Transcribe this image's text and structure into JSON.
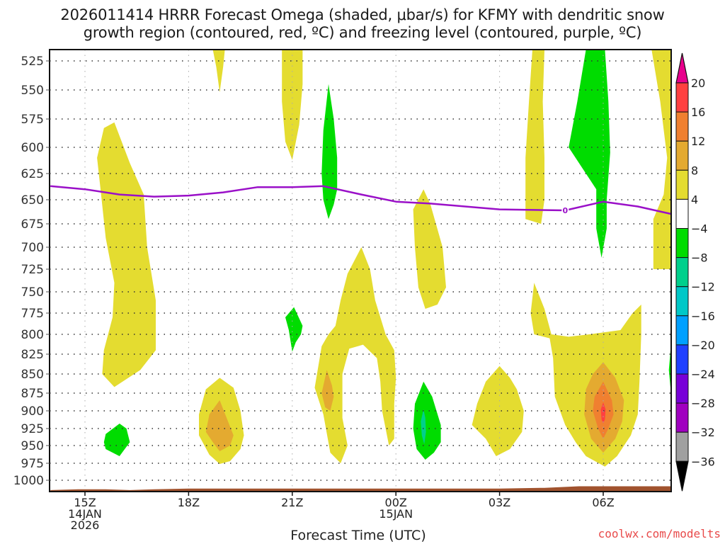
{
  "chart_data": {
    "type": "heatmap",
    "title_line1": "2026011414 HRRR Forecast Omega (shaded, μbar/s) for KFMY with dendritic snow",
    "title_line2": "growth region (contoured, red, ºC) and freezing level (contoured, purple, ºC)",
    "xlabel": "Forecast Time (UTC)",
    "ylabel": "",
    "credit": "coolwx.com/modelts",
    "x_unit": "hours since 14Z 14JAN2026",
    "xlim": [
      0,
      18
    ],
    "y_unit": "hPa",
    "ylim": [
      1015,
      512
    ],
    "y_ticks": [
      525,
      550,
      575,
      600,
      625,
      650,
      675,
      700,
      725,
      750,
      775,
      800,
      825,
      850,
      875,
      900,
      925,
      950,
      975,
      1000
    ],
    "x_ticks": [
      {
        "hour": 1,
        "label": "15Z",
        "sub1": "14JAN",
        "sub2": "2026"
      },
      {
        "hour": 4,
        "label": "18Z",
        "sub1": "",
        "sub2": ""
      },
      {
        "hour": 7,
        "label": "21Z",
        "sub1": "",
        "sub2": ""
      },
      {
        "hour": 10,
        "label": "00Z",
        "sub1": "15JAN",
        "sub2": ""
      },
      {
        "hour": 13,
        "label": "03Z",
        "sub1": "",
        "sub2": ""
      },
      {
        "hour": 16,
        "label": "06Z",
        "sub1": "",
        "sub2": ""
      }
    ],
    "grid": true,
    "colorbar": {
      "placement": "right",
      "unit": "μbar/s",
      "levels": [
        20,
        16,
        12,
        8,
        4,
        -4,
        -8,
        -12,
        -16,
        -20,
        -24,
        -28,
        -32,
        -36
      ],
      "bins": [
        {
          "range": ">20",
          "color": "#e8008c"
        },
        {
          "range": "16 to 20",
          "color": "#ff4040"
        },
        {
          "range": "12 to 16",
          "color": "#f08030"
        },
        {
          "range": "8 to 12",
          "color": "#e4aa30"
        },
        {
          "range": "4 to 8",
          "color": "#e4dc30"
        },
        {
          "range": "-4 to 4",
          "color": "#ffffff"
        },
        {
          "range": "-8 to -4",
          "color": "#00dc00"
        },
        {
          "range": "-12 to -8",
          "color": "#00d08c"
        },
        {
          "range": "-16 to -12",
          "color": "#00c8c8"
        },
        {
          "range": "-20 to -16",
          "color": "#00a0ff"
        },
        {
          "range": "-24 to -20",
          "color": "#2040ff"
        },
        {
          "range": "-28 to -24",
          "color": "#7800d8"
        },
        {
          "range": "-32 to -28",
          "color": "#a000c0"
        },
        {
          "range": "-36 to -32",
          "color": "#a0a0a0"
        },
        {
          "range": "<-36",
          "color": "#000000"
        }
      ]
    },
    "freezing_level": {
      "label": "0",
      "color": "#9a10c8",
      "points": [
        [
          0,
          637
        ],
        [
          1,
          640
        ],
        [
          2,
          645
        ],
        [
          3,
          647
        ],
        [
          4,
          646
        ],
        [
          5,
          643
        ],
        [
          6,
          638
        ],
        [
          7,
          638
        ],
        [
          7.9,
          637
        ],
        [
          9,
          645
        ],
        [
          10,
          652
        ],
        [
          11,
          654
        ],
        [
          12,
          657
        ],
        [
          13,
          660
        ],
        [
          14.9,
          661
        ],
        [
          16,
          652
        ],
        [
          17,
          657
        ],
        [
          18,
          665
        ]
      ]
    },
    "terrain_color": "#a0522d",
    "omega_regions": [
      {
        "name": "yellow-col-1",
        "bin": "4 to 8",
        "center_hour": 2.0,
        "p_top": 578,
        "p_bottom": 870
      },
      {
        "name": "yellow-top-1",
        "bin": "4 to 8",
        "center_hour": 4.9,
        "p_top": 512,
        "p_bottom": 550
      },
      {
        "name": "yellow-top-2",
        "bin": "4 to 8",
        "center_hour": 6.9,
        "p_top": 512,
        "p_bottom": 610
      },
      {
        "name": "green-1",
        "bin": "-8 to -4",
        "center_hour": 8.0,
        "p_top": 545,
        "p_bottom": 670
      },
      {
        "name": "green-2",
        "bin": "-8 to -4",
        "center_hour": 7.0,
        "p_top": 770,
        "p_bottom": 820
      },
      {
        "name": "green-3",
        "bin": "-8 to -4",
        "center_hour": 1.6,
        "p_top": 920,
        "p_bottom": 965
      },
      {
        "name": "yellow-lump-1",
        "bin": "4 to 8",
        "center_hour": 4.9,
        "p_top": 855,
        "p_bottom": 975
      },
      {
        "name": "orange-lump-1",
        "bin": "8 to 12",
        "center_hour": 4.9,
        "p_top": 885,
        "p_bottom": 955
      },
      {
        "name": "yellow-arch",
        "bin": "4 to 8",
        "center_hour": 9.0,
        "p_top": 700,
        "p_bottom": 975
      },
      {
        "name": "orange-arch",
        "bin": "8 to 12",
        "center_hour": 8.0,
        "p_top": 845,
        "p_bottom": 895
      },
      {
        "name": "yellow-mid",
        "bin": "4 to 8",
        "center_hour": 10.8,
        "p_top": 640,
        "p_bottom": 770
      },
      {
        "name": "green-4",
        "bin": "-8 to -4",
        "center_hour": 10.8,
        "p_top": 860,
        "p_bottom": 970
      },
      {
        "name": "teal-4",
        "bin": "-12 to -8",
        "center_hour": 10.8,
        "p_top": 900,
        "p_bottom": 950
      },
      {
        "name": "yellow-lump-2",
        "bin": "4 to 8",
        "center_hour": 13.0,
        "p_top": 840,
        "p_bottom": 965
      },
      {
        "name": "yellow-col-2",
        "bin": "4 to 8",
        "center_hour": 14.0,
        "p_top": 512,
        "p_bottom": 675
      },
      {
        "name": "green-5",
        "bin": "-8 to -4",
        "center_hour": 15.8,
        "p_top": 512,
        "p_bottom": 710
      },
      {
        "name": "yellow-right",
        "bin": "4 to 8",
        "center_hour": 17.6,
        "p_top": 512,
        "p_bottom": 725
      },
      {
        "name": "yellow-big",
        "bin": "4 to 8",
        "center_hour": 15.8,
        "p_top": 740,
        "p_bottom": 980
      },
      {
        "name": "orange-big",
        "bin": "8 to 12",
        "center_hour": 16.0,
        "p_top": 835,
        "p_bottom": 960
      },
      {
        "name": "orange2-big",
        "bin": "12 to 16",
        "center_hour": 16.0,
        "p_top": 860,
        "p_bottom": 940
      },
      {
        "name": "red-big",
        "bin": "16 to 20",
        "center_hour": 16.0,
        "p_top": 888,
        "p_bottom": 910
      },
      {
        "name": "green-edge",
        "bin": "-8 to -4",
        "center_hour": 18.0,
        "p_top": 815,
        "p_bottom": 875
      }
    ]
  }
}
